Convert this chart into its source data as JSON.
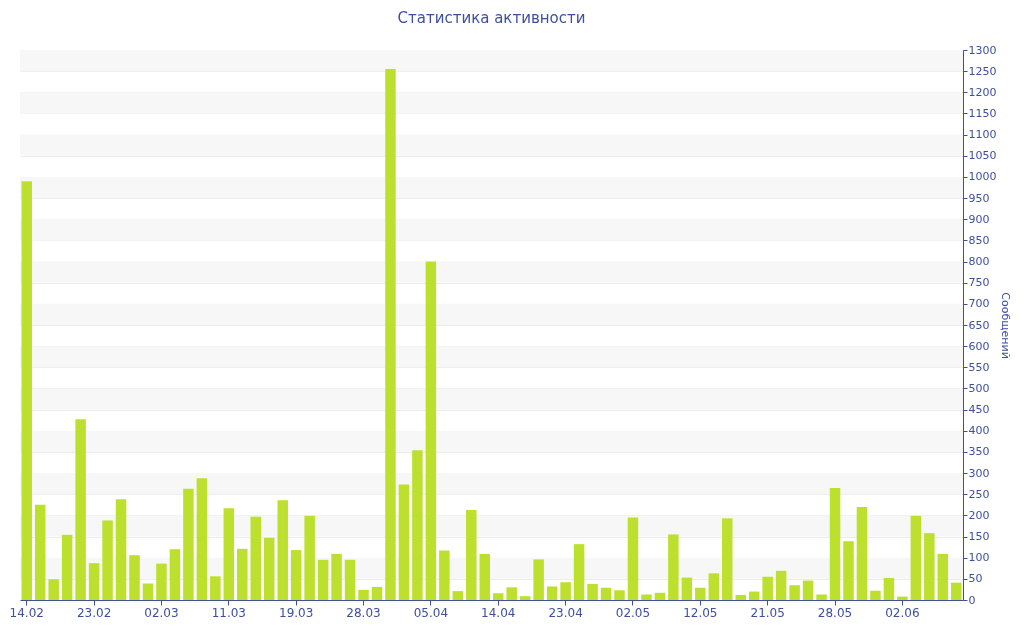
{
  "chart_data": {
    "type": "bar",
    "title": "Статистика активности",
    "ylabel": "Сообщений",
    "categories": [
      "14.02",
      null,
      null,
      null,
      null,
      "23.02",
      null,
      null,
      null,
      null,
      "02.03",
      null,
      null,
      null,
      null,
      "11.03",
      null,
      null,
      null,
      null,
      "19.03",
      null,
      null,
      null,
      null,
      "28.03",
      null,
      null,
      null,
      null,
      "05.04",
      null,
      null,
      null,
      null,
      "14.04",
      null,
      null,
      null,
      null,
      "23.04",
      null,
      null,
      null,
      null,
      "02.05",
      null,
      null,
      null,
      null,
      "12.05",
      null,
      null,
      null,
      null,
      "21.05",
      null,
      null,
      null,
      null,
      "28.05",
      null,
      null,
      null,
      null,
      "02.06",
      null,
      null,
      null,
      null
    ],
    "values": [
      990,
      225,
      49,
      154,
      427,
      87,
      188,
      238,
      106,
      39,
      86,
      120,
      263,
      288,
      56,
      217,
      121,
      197,
      147,
      236,
      118,
      199,
      95,
      109,
      95,
      24,
      31,
      1255,
      273,
      354,
      800,
      117,
      21,
      213,
      109,
      16,
      30,
      9,
      96,
      32,
      42,
      132,
      38,
      29,
      23,
      195,
      13,
      17,
      155,
      53,
      29,
      63,
      193,
      12,
      20,
      55,
      69,
      35,
      46,
      13,
      265,
      139,
      220,
      22,
      52,
      8,
      199,
      158,
      109,
      41
    ],
    "color": "#bde02f",
    "ylim": [
      0,
      1300
    ],
    "yticks": [
      0,
      50,
      100,
      150,
      200,
      250,
      300,
      350,
      400,
      450,
      500,
      550,
      600,
      650,
      700,
      750,
      800,
      850,
      900,
      950,
      1000,
      1050,
      1100,
      1150,
      1200,
      1250,
      1300
    ],
    "grid": "y"
  }
}
